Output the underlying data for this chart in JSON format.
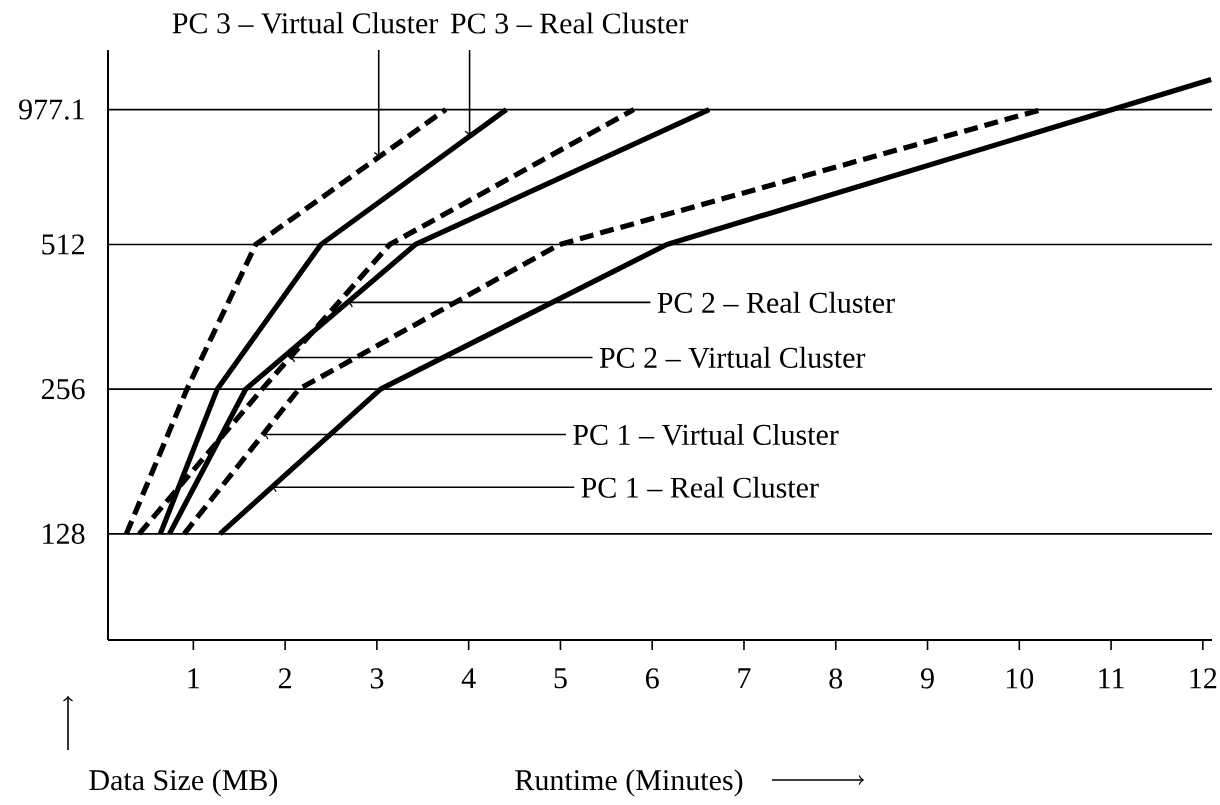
{
  "chart_data": {
    "type": "line",
    "xlabel": "Runtime (Minutes)",
    "xlim": [
      0.07,
      12.1
    ],
    "ylim": [
      77,
      1300
    ],
    "log": "y",
    "grid": "y",
    "marker": "none",
    "xticks": [
      1,
      2,
      3,
      4,
      5,
      6,
      7,
      8,
      9,
      10,
      11,
      12
    ],
    "yticks": [
      128,
      256,
      512,
      977.1
    ],
    "series": [
      {
        "color": "#000000",
        "line_style": "dashed",
        "x": [
          0.27,
          0.93,
          1.68,
          3.75
        ],
        "values": [
          128,
          256,
          512,
          977.1
        ]
      },
      {
        "color": "#000000",
        "line_style": "solid",
        "x": [
          0.64,
          1.26,
          2.39,
          4.41
        ],
        "values": [
          128,
          256,
          512,
          977.1
        ]
      },
      {
        "color": "#000000",
        "line_style": "dashed",
        "x": [
          0.41,
          1.75,
          3.14,
          5.8
        ],
        "values": [
          128,
          256,
          512,
          977.1
        ]
      },
      {
        "color": "#000000",
        "line_style": "solid",
        "x": [
          0.74,
          1.57,
          3.42,
          6.62
        ],
        "values": [
          128,
          256,
          512,
          977.1
        ]
      },
      {
        "color": "#000000",
        "line_style": "dashed",
        "x": [
          0.9,
          2.15,
          4.99,
          10.24
        ],
        "values": [
          128,
          256,
          512,
          977.1
        ]
      },
      {
        "color": "#000000",
        "line_style": "solid",
        "x": [
          1.29,
          3.04,
          6.16,
          12.09
        ],
        "values": [
          128,
          256,
          512,
          1128
        ]
      }
    ],
    "annotations": [
      {
        "text": "PC 3 – Virtual Cluster",
        "x": 3.02,
        "y": 777
      },
      {
        "text": "PC 3 – Real Cluster",
        "x": 4.01,
        "y": 860
      },
      {
        "text": "PC 2 – Real Cluster",
        "x": 2.68,
        "y": 388
      },
      {
        "text": "PC 2 – Virtual Cluster",
        "x": 2.05,
        "y": 298
      },
      {
        "text": "PC 1 – Virtual Cluster",
        "x": 1.76,
        "y": 206
      },
      {
        "text": "PC 1 – Real Cluster",
        "x": 1.85,
        "y": 160
      },
      "Data Size (MB)"
    ]
  }
}
